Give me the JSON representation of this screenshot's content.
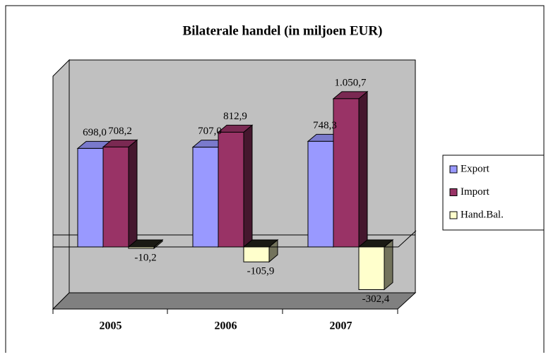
{
  "chart_data": {
    "type": "bar3d",
    "title": "Bilaterale handel (in miljoen EUR)",
    "categories": [
      "2005",
      "2006",
      "2007"
    ],
    "series": [
      {
        "name": "Export",
        "color": "#9999ff",
        "values": [
          698.0,
          707.0,
          748.3
        ],
        "value_labels": [
          "698,0",
          "707,0",
          "748,3"
        ]
      },
      {
        "name": "Import",
        "color": "#993366",
        "values": [
          708.2,
          812.9,
          1050.7
        ],
        "value_labels": [
          "708,2",
          "812,9",
          "1.050,7"
        ]
      },
      {
        "name": "Hand.Bal.",
        "color": "#ffffcc",
        "values": [
          -10.2,
          -105.9,
          -302.4
        ],
        "value_labels": [
          "-10,2",
          "-105,9",
          "-302,4"
        ]
      }
    ],
    "ylim": [
      -440,
      1210
    ],
    "legend": "right"
  }
}
